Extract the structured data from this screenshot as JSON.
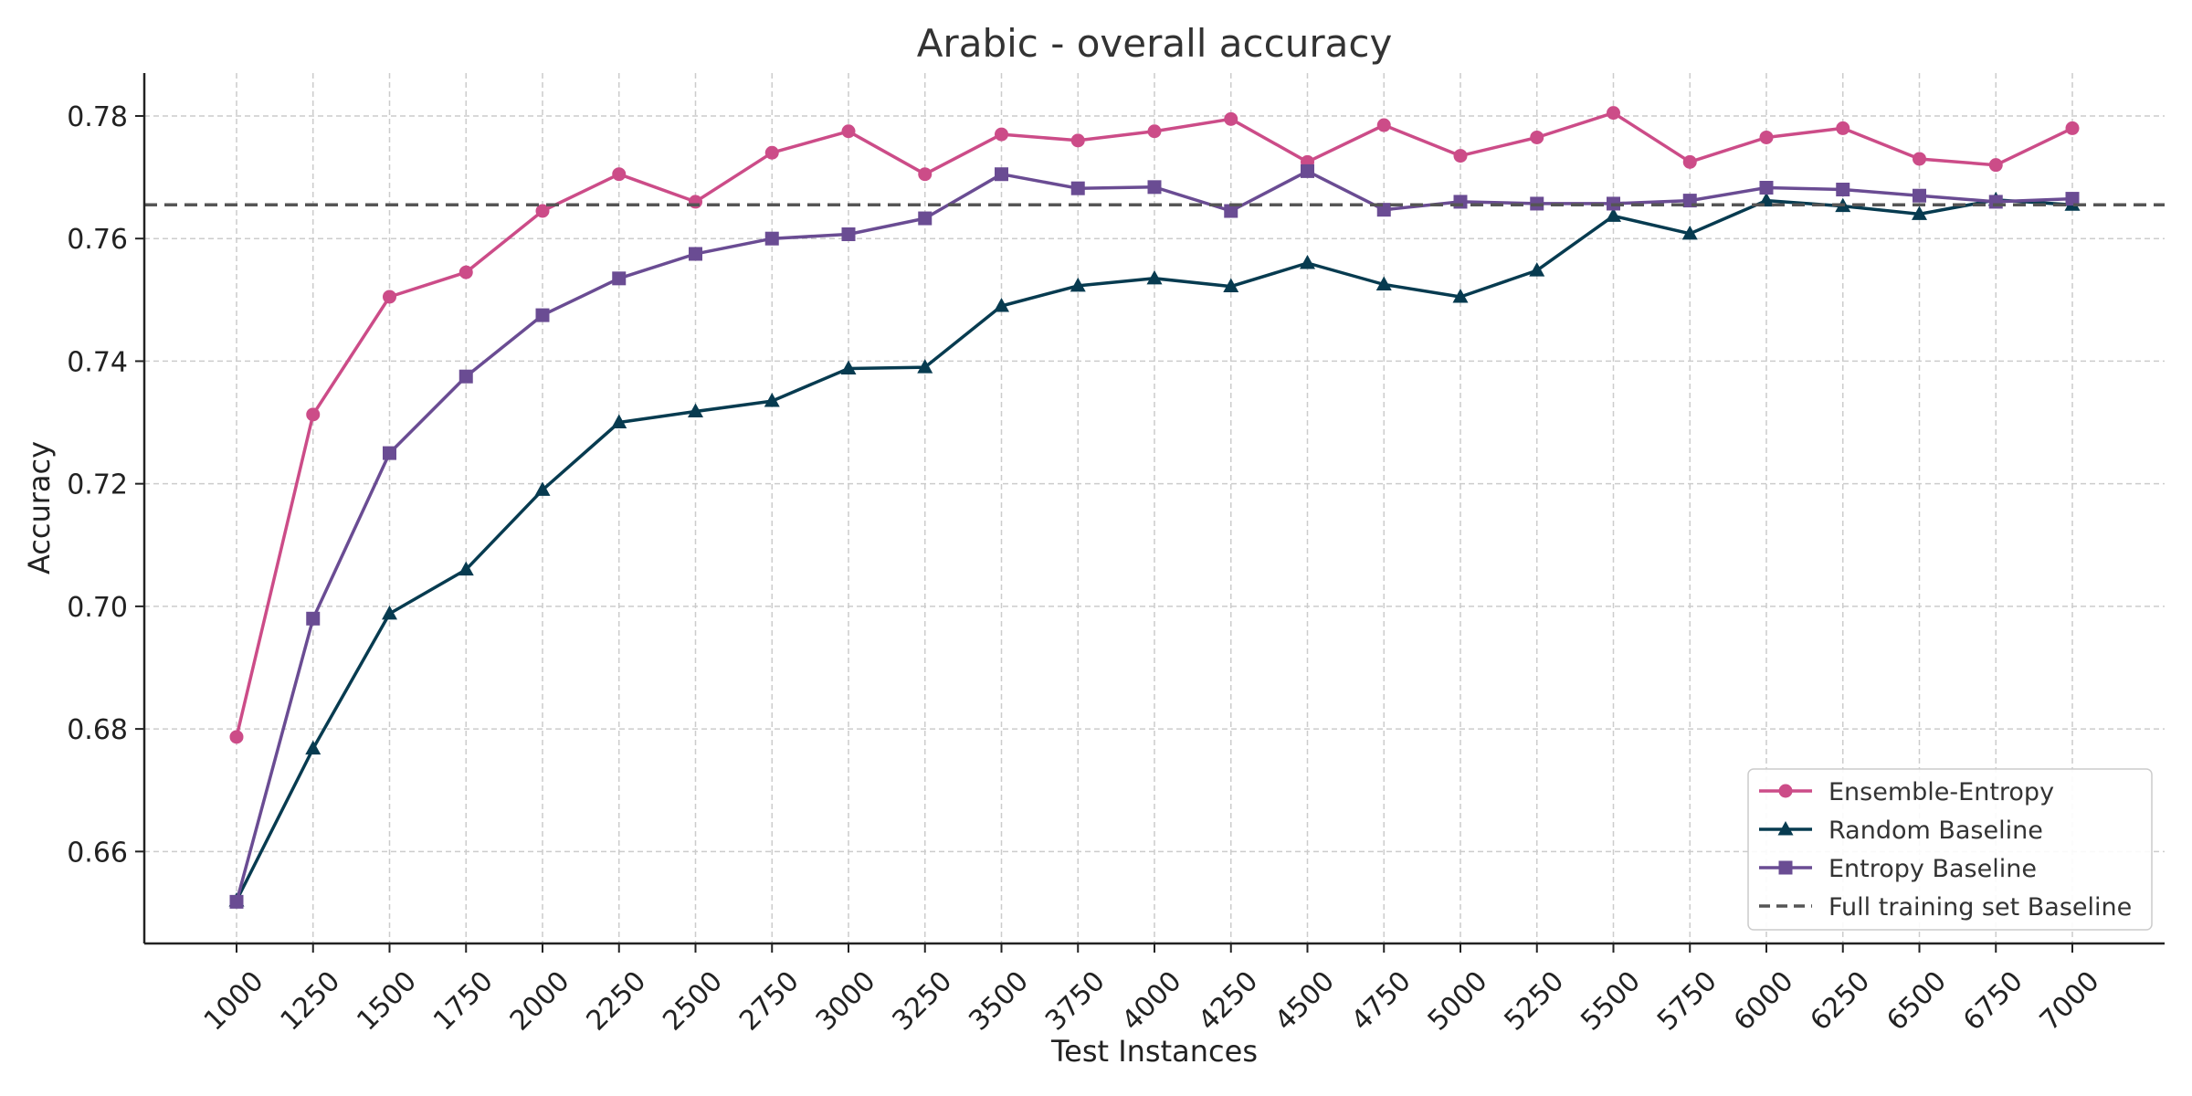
{
  "chart_data": {
    "type": "line",
    "title": "Arabic - overall accuracy",
    "xlabel": "Test Instances",
    "ylabel": "Accuracy",
    "x": [
      1000,
      1250,
      1500,
      1750,
      2000,
      2250,
      2500,
      2750,
      3000,
      3250,
      3500,
      3750,
      4000,
      4250,
      4500,
      4750,
      5000,
      5250,
      5500,
      5750,
      6000,
      6250,
      6500,
      6750,
      7000
    ],
    "yticks": [
      0.66,
      0.68,
      0.7,
      0.72,
      0.74,
      0.76,
      0.78
    ],
    "ytick_labels": [
      "0.66",
      "0.68",
      "0.70",
      "0.72",
      "0.74",
      "0.76",
      "0.78"
    ],
    "ylim": [
      0.645,
      0.787
    ],
    "grid": true,
    "legend_position": "bottom-right",
    "series": [
      {
        "name": "Ensemble-Entropy",
        "color": "#cc4c88",
        "marker": "circle",
        "values": [
          0.6787,
          0.7313,
          0.7505,
          0.7545,
          0.7645,
          0.7705,
          0.766,
          0.774,
          0.7775,
          0.7705,
          0.777,
          0.776,
          0.7775,
          0.7795,
          0.7725,
          0.7785,
          0.7735,
          0.7765,
          0.7805,
          0.7725,
          0.7765,
          0.778,
          0.773,
          0.772,
          0.778
        ]
      },
      {
        "name": "Random Baseline",
        "color": "#073b50",
        "marker": "triangle",
        "values": [
          0.652,
          0.6768,
          0.6988,
          0.706,
          0.719,
          0.73,
          0.7318,
          0.7335,
          0.7388,
          0.739,
          0.749,
          0.7523,
          0.7535,
          0.7522,
          0.756,
          0.7525,
          0.7505,
          0.7548,
          0.7637,
          0.7608,
          0.7662,
          0.7653,
          0.764,
          0.7663,
          0.7655
        ]
      },
      {
        "name": "Entropy Baseline",
        "color": "#6a4c93",
        "marker": "square",
        "values": [
          0.6518,
          0.698,
          0.725,
          0.7375,
          0.7475,
          0.7535,
          0.7575,
          0.76,
          0.7607,
          0.7633,
          0.7705,
          0.7682,
          0.7684,
          0.7645,
          0.771,
          0.7647,
          0.766,
          0.7657,
          0.7657,
          0.7662,
          0.7683,
          0.768,
          0.767,
          0.766,
          0.7665
        ]
      },
      {
        "name": "Full training set Baseline",
        "color": "#555555",
        "marker": "none",
        "dashed": true,
        "constant": 0.7655
      }
    ]
  }
}
